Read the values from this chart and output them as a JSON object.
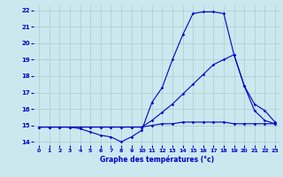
{
  "xlabel": "Graphe des températures (°c)",
  "xlim": [
    -0.5,
    23.5
  ],
  "ylim": [
    13.8,
    22.3
  ],
  "yticks": [
    14,
    15,
    16,
    17,
    18,
    19,
    20,
    21,
    22
  ],
  "xticks": [
    0,
    1,
    2,
    3,
    4,
    5,
    6,
    7,
    8,
    9,
    10,
    11,
    12,
    13,
    14,
    15,
    16,
    17,
    18,
    19,
    20,
    21,
    22,
    23
  ],
  "background_color": "#cce8ef",
  "grid_color": "#aacccc",
  "line_color": "#0000cc",
  "line1_y": [
    14.9,
    14.9,
    14.9,
    14.9,
    14.8,
    14.6,
    14.4,
    14.3,
    14.0,
    14.3,
    14.7,
    16.4,
    17.3,
    19.0,
    20.5,
    21.8,
    21.9,
    21.9,
    21.8,
    19.3,
    17.4,
    16.3,
    15.9,
    15.2
  ],
  "line2_y": [
    14.9,
    14.9,
    14.9,
    14.9,
    14.9,
    14.9,
    14.9,
    14.9,
    14.9,
    14.9,
    14.9,
    15.3,
    15.8,
    16.3,
    16.9,
    17.5,
    18.1,
    18.7,
    19.0,
    19.3,
    17.4,
    15.9,
    15.3,
    15.1
  ],
  "line3_y": [
    14.9,
    14.9,
    14.9,
    14.9,
    14.9,
    14.9,
    14.9,
    14.9,
    14.9,
    14.9,
    14.9,
    15.0,
    15.1,
    15.1,
    15.2,
    15.2,
    15.2,
    15.2,
    15.2,
    15.1,
    15.1,
    15.1,
    15.1,
    15.1
  ]
}
